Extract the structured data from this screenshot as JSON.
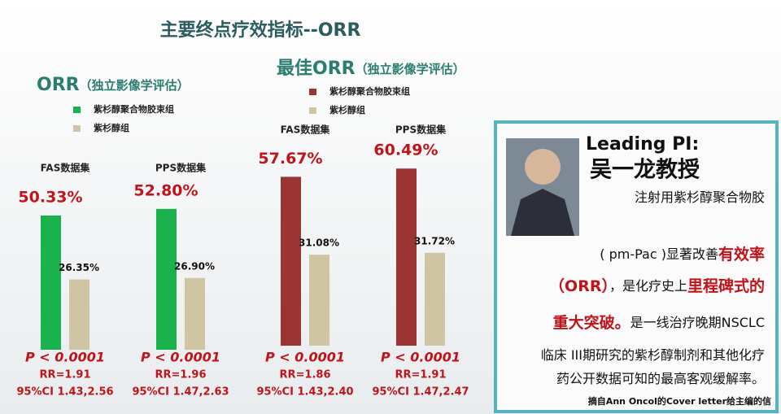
{
  "header": {
    "title": "主要终点疗效指标--ORR"
  },
  "chart_data": [
    {
      "type": "bar",
      "title": "ORR",
      "subtitle": "（独立影像学评估）",
      "categories": [
        "FAS数据集",
        "PPS数据集"
      ],
      "series": [
        {
          "name": "紫杉醇聚合物胶束组",
          "color": "#19b24c",
          "values": [
            50.33,
            52.8
          ],
          "value_labels": [
            "50.33%",
            "52.80%"
          ]
        },
        {
          "name": "紫杉醇组",
          "color": "#cfc5a2",
          "values": [
            26.35,
            26.9
          ],
          "value_labels": [
            "26.35%",
            "26.90%"
          ]
        }
      ],
      "annotations": [
        [
          "P < 0.0001",
          "RR=1.91",
          "95%CI 1.43,2.56"
        ],
        [
          "P < 0.0001",
          "RR=1.96",
          "95%CI 1.47,2.63"
        ]
      ]
    },
    {
      "type": "bar",
      "title": "最佳ORR",
      "subtitle": "（独立影像学评估）",
      "categories": [
        "FAS数据集",
        "PPS数据集"
      ],
      "series": [
        {
          "name": "紫杉醇聚合物胶束组",
          "color": "#9c3434",
          "values": [
            57.67,
            60.49
          ],
          "value_labels": [
            "57.67%",
            "60.49%"
          ]
        },
        {
          "name": "紫杉醇组",
          "color": "#cfc5a2",
          "values": [
            31.08,
            31.72
          ],
          "value_labels": [
            "31.08%",
            "31.72%"
          ]
        }
      ],
      "annotations": [
        [
          "P < 0.0001",
          "RR=1.86",
          "95%CI 1.43,2.40"
        ],
        [
          "P < 0.0001",
          "RR=1.91",
          "95%CI 1.47,2.47"
        ]
      ]
    }
  ],
  "panel": {
    "heading": "Leading PI:",
    "name": "吴一龙教授",
    "lines": [
      [
        {
          "text": "注射用紫杉醇聚合物胶",
          "emphasis": false
        }
      ],
      [
        {
          "text": "( pm-Pac )显著改善",
          "emphasis": false
        },
        {
          "text": "有效率",
          "emphasis": true
        }
      ],
      [
        {
          "text": "（ORR）",
          "emphasis": true
        },
        {
          "text": "，是化疗史上",
          "emphasis": false
        },
        {
          "text": "里程碑式的",
          "emphasis": true
        }
      ],
      [
        {
          "text": "重大突破。",
          "emphasis": true
        },
        {
          "text": "是一线治疗晚期NSCLC",
          "emphasis": false
        }
      ],
      [
        {
          "text": "临床 III期研究的紫杉醇制剂和其他化疗",
          "emphasis": false
        }
      ],
      [
        {
          "text": "药公开数据可知的最高客观缓解率。",
          "emphasis": false
        }
      ]
    ],
    "footnote": "摘自Ann Oncol的Cover letter给主编的信"
  }
}
